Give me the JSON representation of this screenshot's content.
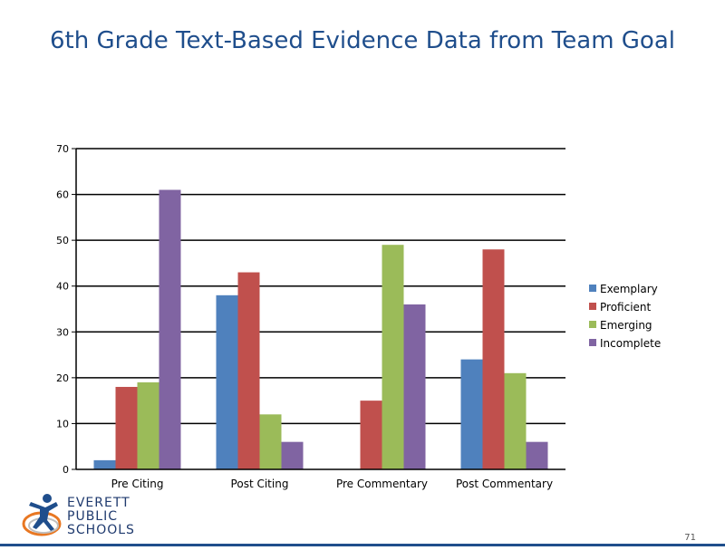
{
  "slide": {
    "title": "6th Grade Text-Based Evidence Data from Team Goal",
    "page_number": "71",
    "logo": {
      "line1": "EVERETT",
      "line2": "PUBLIC",
      "line3": "SCHOOLS"
    }
  },
  "chart_data": {
    "type": "bar",
    "title": "",
    "xlabel": "",
    "ylabel": "",
    "categories": [
      "Pre Citing",
      "Post Citing",
      "Pre Commentary",
      "Post Commentary"
    ],
    "series": [
      {
        "name": "Exemplary",
        "color": "#4f81bd",
        "values": [
          2,
          38,
          0,
          24
        ]
      },
      {
        "name": "Proficient",
        "color": "#c0504d",
        "values": [
          18,
          43,
          15,
          48
        ]
      },
      {
        "name": "Emerging",
        "color": "#9bbb59",
        "values": [
          19,
          12,
          49,
          21
        ]
      },
      {
        "name": "Incomplete",
        "color": "#8064a2",
        "values": [
          61,
          6,
          36,
          6
        ]
      }
    ],
    "ylim": [
      0,
      70
    ],
    "yticks": [
      0,
      10,
      20,
      30,
      40,
      50,
      60,
      70
    ],
    "grid": true,
    "legend_position": "right"
  }
}
